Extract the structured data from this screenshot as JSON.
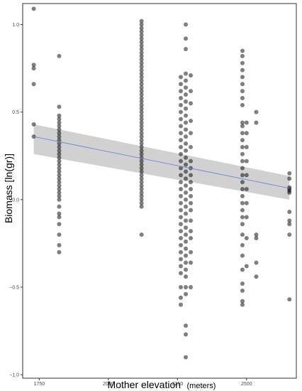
{
  "chart_data": {
    "type": "scatter",
    "title": "",
    "xlabel": "Mother elevation",
    "xlabel_unit": "(meters)",
    "ylabel": "Biomass [ln(gr)]",
    "xlim": [
      1690,
      2680
    ],
    "ylim": [
      -1.02,
      1.12
    ],
    "x_ticks": [
      1750,
      2000,
      2250,
      2500
    ],
    "x_tick_labels": [
      "1750",
      "2000",
      "2250",
      "2500"
    ],
    "y_ticks": [
      -1.0,
      -0.5,
      0.0,
      0.5,
      1.0
    ],
    "y_tick_labels": [
      "−1.0",
      "−0.5",
      "0.0",
      "0.5",
      "1.0"
    ],
    "grid": false,
    "legend": "none",
    "colors": {
      "points": "#000000",
      "point_opacity": 0.5,
      "fit_line": "#6b86d6",
      "confidence_band": "#b3b3b3",
      "panel_border": "#333333"
    },
    "trend_line": {
      "x": [
        1730,
        2655
      ],
      "y": [
        0.36,
        0.065
      ],
      "ci_lower": [
        0.26,
        0.0
      ],
      "ci_upper": [
        0.43,
        0.135
      ]
    },
    "points": [
      {
        "x": 1730,
        "y": 1.09
      },
      {
        "x": 1730,
        "y": 0.77
      },
      {
        "x": 1730,
        "y": 0.75
      },
      {
        "x": 1730,
        "y": 0.66
      },
      {
        "x": 1730,
        "y": 0.43
      },
      {
        "x": 1730,
        "y": 0.36
      },
      {
        "x": 1822,
        "y": 0.82
      },
      {
        "x": 1822,
        "y": 0.53
      },
      {
        "x": 1822,
        "y": 0.48
      },
      {
        "x": 1822,
        "y": 0.46
      },
      {
        "x": 1822,
        "y": 0.44
      },
      {
        "x": 1822,
        "y": 0.42
      },
      {
        "x": 1822,
        "y": 0.4
      },
      {
        "x": 1822,
        "y": 0.38
      },
      {
        "x": 1822,
        "y": 0.36
      },
      {
        "x": 1822,
        "y": 0.34
      },
      {
        "x": 1822,
        "y": 0.32
      },
      {
        "x": 1822,
        "y": 0.3
      },
      {
        "x": 1822,
        "y": 0.28
      },
      {
        "x": 1822,
        "y": 0.26
      },
      {
        "x": 1822,
        "y": 0.24
      },
      {
        "x": 1822,
        "y": 0.22
      },
      {
        "x": 1822,
        "y": 0.2
      },
      {
        "x": 1822,
        "y": 0.18
      },
      {
        "x": 1822,
        "y": 0.16
      },
      {
        "x": 1822,
        "y": 0.14
      },
      {
        "x": 1822,
        "y": 0.12
      },
      {
        "x": 1822,
        "y": 0.1
      },
      {
        "x": 1822,
        "y": 0.08
      },
      {
        "x": 1822,
        "y": 0.06
      },
      {
        "x": 1822,
        "y": 0.04
      },
      {
        "x": 1822,
        "y": 0.02
      },
      {
        "x": 1822,
        "y": 0.0
      },
      {
        "x": 1822,
        "y": -0.04
      },
      {
        "x": 1822,
        "y": -0.08
      },
      {
        "x": 1822,
        "y": -0.1
      },
      {
        "x": 1822,
        "y": -0.14
      },
      {
        "x": 1822,
        "y": -0.2
      },
      {
        "x": 1822,
        "y": -0.26
      },
      {
        "x": 1822,
        "y": -0.3
      },
      {
        "x": 2120,
        "y": 1.02
      },
      {
        "x": 2120,
        "y": 1.0
      },
      {
        "x": 2120,
        "y": 0.98
      },
      {
        "x": 2120,
        "y": 0.96
      },
      {
        "x": 2120,
        "y": 0.94
      },
      {
        "x": 2120,
        "y": 0.92
      },
      {
        "x": 2120,
        "y": 0.9
      },
      {
        "x": 2120,
        "y": 0.88
      },
      {
        "x": 2120,
        "y": 0.86
      },
      {
        "x": 2120,
        "y": 0.84
      },
      {
        "x": 2120,
        "y": 0.82
      },
      {
        "x": 2120,
        "y": 0.8
      },
      {
        "x": 2120,
        "y": 0.78
      },
      {
        "x": 2120,
        "y": 0.76
      },
      {
        "x": 2120,
        "y": 0.74
      },
      {
        "x": 2120,
        "y": 0.72
      },
      {
        "x": 2120,
        "y": 0.7
      },
      {
        "x": 2120,
        "y": 0.68
      },
      {
        "x": 2120,
        "y": 0.66
      },
      {
        "x": 2120,
        "y": 0.64
      },
      {
        "x": 2120,
        "y": 0.62
      },
      {
        "x": 2120,
        "y": 0.6
      },
      {
        "x": 2120,
        "y": 0.58
      },
      {
        "x": 2120,
        "y": 0.56
      },
      {
        "x": 2120,
        "y": 0.54
      },
      {
        "x": 2120,
        "y": 0.52
      },
      {
        "x": 2120,
        "y": 0.5
      },
      {
        "x": 2120,
        "y": 0.48
      },
      {
        "x": 2120,
        "y": 0.46
      },
      {
        "x": 2120,
        "y": 0.44
      },
      {
        "x": 2120,
        "y": 0.42
      },
      {
        "x": 2120,
        "y": 0.4
      },
      {
        "x": 2120,
        "y": 0.38
      },
      {
        "x": 2120,
        "y": 0.36
      },
      {
        "x": 2120,
        "y": 0.34
      },
      {
        "x": 2120,
        "y": 0.32
      },
      {
        "x": 2120,
        "y": 0.3
      },
      {
        "x": 2120,
        "y": 0.28
      },
      {
        "x": 2120,
        "y": 0.26
      },
      {
        "x": 2120,
        "y": 0.24
      },
      {
        "x": 2120,
        "y": 0.22
      },
      {
        "x": 2120,
        "y": 0.2
      },
      {
        "x": 2120,
        "y": 0.18
      },
      {
        "x": 2120,
        "y": 0.16
      },
      {
        "x": 2120,
        "y": 0.14
      },
      {
        "x": 2120,
        "y": 0.12
      },
      {
        "x": 2120,
        "y": 0.1
      },
      {
        "x": 2120,
        "y": 0.08
      },
      {
        "x": 2120,
        "y": 0.06
      },
      {
        "x": 2120,
        "y": 0.04
      },
      {
        "x": 2120,
        "y": 0.02
      },
      {
        "x": 2120,
        "y": 0.0
      },
      {
        "x": 2120,
        "y": -0.02
      },
      {
        "x": 2120,
        "y": -0.04
      },
      {
        "x": 2120,
        "y": -0.2
      },
      {
        "x": 2262,
        "y": 0.7
      },
      {
        "x": 2262,
        "y": 0.66
      },
      {
        "x": 2262,
        "y": 0.62
      },
      {
        "x": 2262,
        "y": 0.58
      },
      {
        "x": 2262,
        "y": 0.54
      },
      {
        "x": 2262,
        "y": 0.5
      },
      {
        "x": 2262,
        "y": 0.46
      },
      {
        "x": 2262,
        "y": 0.42
      },
      {
        "x": 2262,
        "y": 0.38
      },
      {
        "x": 2262,
        "y": 0.34
      },
      {
        "x": 2262,
        "y": 0.3
      },
      {
        "x": 2262,
        "y": 0.26
      },
      {
        "x": 2262,
        "y": 0.22
      },
      {
        "x": 2262,
        "y": 0.18
      },
      {
        "x": 2262,
        "y": 0.14
      },
      {
        "x": 2262,
        "y": 0.1
      },
      {
        "x": 2262,
        "y": 0.06
      },
      {
        "x": 2262,
        "y": 0.02
      },
      {
        "x": 2262,
        "y": -0.02
      },
      {
        "x": 2262,
        "y": -0.06
      },
      {
        "x": 2262,
        "y": -0.1
      },
      {
        "x": 2262,
        "y": -0.14
      },
      {
        "x": 2262,
        "y": -0.18
      },
      {
        "x": 2262,
        "y": -0.22
      },
      {
        "x": 2262,
        "y": -0.26
      },
      {
        "x": 2262,
        "y": -0.3
      },
      {
        "x": 2262,
        "y": -0.34
      },
      {
        "x": 2262,
        "y": -0.38
      },
      {
        "x": 2262,
        "y": -0.42
      },
      {
        "x": 2262,
        "y": -0.5
      },
      {
        "x": 2262,
        "y": -0.56
      },
      {
        "x": 2262,
        "y": -0.6
      },
      {
        "x": 2280,
        "y": 1.0
      },
      {
        "x": 2280,
        "y": 0.92
      },
      {
        "x": 2280,
        "y": 0.86
      },
      {
        "x": 2280,
        "y": 0.72
      },
      {
        "x": 2280,
        "y": 0.68
      },
      {
        "x": 2280,
        "y": 0.64
      },
      {
        "x": 2280,
        "y": 0.6
      },
      {
        "x": 2280,
        "y": 0.56
      },
      {
        "x": 2280,
        "y": 0.52
      },
      {
        "x": 2280,
        "y": 0.48
      },
      {
        "x": 2280,
        "y": 0.44
      },
      {
        "x": 2280,
        "y": 0.4
      },
      {
        "x": 2280,
        "y": 0.36
      },
      {
        "x": 2280,
        "y": 0.32
      },
      {
        "x": 2280,
        "y": 0.28
      },
      {
        "x": 2280,
        "y": 0.24
      },
      {
        "x": 2280,
        "y": 0.2
      },
      {
        "x": 2280,
        "y": 0.16
      },
      {
        "x": 2280,
        "y": 0.12
      },
      {
        "x": 2280,
        "y": 0.08
      },
      {
        "x": 2280,
        "y": 0.04
      },
      {
        "x": 2280,
        "y": 0.0
      },
      {
        "x": 2280,
        "y": -0.04
      },
      {
        "x": 2280,
        "y": -0.08
      },
      {
        "x": 2280,
        "y": -0.12
      },
      {
        "x": 2280,
        "y": -0.16
      },
      {
        "x": 2280,
        "y": -0.2
      },
      {
        "x": 2280,
        "y": -0.24
      },
      {
        "x": 2280,
        "y": -0.28
      },
      {
        "x": 2280,
        "y": -0.32
      },
      {
        "x": 2280,
        "y": -0.36
      },
      {
        "x": 2280,
        "y": -0.4
      },
      {
        "x": 2280,
        "y": -0.44
      },
      {
        "x": 2280,
        "y": -0.5
      },
      {
        "x": 2280,
        "y": -0.54
      },
      {
        "x": 2280,
        "y": -0.72
      },
      {
        "x": 2280,
        "y": -0.77
      },
      {
        "x": 2280,
        "y": -0.9
      },
      {
        "x": 2298,
        "y": 0.71
      },
      {
        "x": 2298,
        "y": 0.62
      },
      {
        "x": 2298,
        "y": 0.55
      },
      {
        "x": 2298,
        "y": 0.45
      },
      {
        "x": 2298,
        "y": 0.38
      },
      {
        "x": 2298,
        "y": 0.3
      },
      {
        "x": 2298,
        "y": 0.22
      },
      {
        "x": 2298,
        "y": 0.18
      },
      {
        "x": 2298,
        "y": 0.14
      },
      {
        "x": 2298,
        "y": 0.1
      },
      {
        "x": 2298,
        "y": 0.06
      },
      {
        "x": 2298,
        "y": 0.02
      },
      {
        "x": 2298,
        "y": -0.02
      },
      {
        "x": 2298,
        "y": -0.06
      },
      {
        "x": 2298,
        "y": -0.12
      },
      {
        "x": 2298,
        "y": -0.18
      },
      {
        "x": 2298,
        "y": -0.22
      },
      {
        "x": 2298,
        "y": -0.3
      },
      {
        "x": 2298,
        "y": -0.36
      },
      {
        "x": 2298,
        "y": -0.5
      },
      {
        "x": 2485,
        "y": 0.85
      },
      {
        "x": 2485,
        "y": 0.82
      },
      {
        "x": 2485,
        "y": 0.78
      },
      {
        "x": 2485,
        "y": 0.74
      },
      {
        "x": 2485,
        "y": 0.7
      },
      {
        "x": 2485,
        "y": 0.66
      },
      {
        "x": 2485,
        "y": 0.62
      },
      {
        "x": 2485,
        "y": 0.58
      },
      {
        "x": 2485,
        "y": 0.54
      },
      {
        "x": 2485,
        "y": 0.44
      },
      {
        "x": 2485,
        "y": 0.42
      },
      {
        "x": 2485,
        "y": 0.38
      },
      {
        "x": 2485,
        "y": 0.34
      },
      {
        "x": 2485,
        "y": 0.3
      },
      {
        "x": 2485,
        "y": 0.26
      },
      {
        "x": 2485,
        "y": 0.22
      },
      {
        "x": 2485,
        "y": 0.18
      },
      {
        "x": 2485,
        "y": 0.14
      },
      {
        "x": 2485,
        "y": 0.1
      },
      {
        "x": 2485,
        "y": 0.06
      },
      {
        "x": 2485,
        "y": 0.02
      },
      {
        "x": 2485,
        "y": -0.02
      },
      {
        "x": 2485,
        "y": -0.06
      },
      {
        "x": 2485,
        "y": -0.1
      },
      {
        "x": 2485,
        "y": -0.14
      },
      {
        "x": 2485,
        "y": -0.2
      },
      {
        "x": 2485,
        "y": -0.26
      },
      {
        "x": 2485,
        "y": -0.32
      },
      {
        "x": 2485,
        "y": -0.4
      },
      {
        "x": 2485,
        "y": -0.48
      },
      {
        "x": 2485,
        "y": -0.52
      },
      {
        "x": 2485,
        "y": -0.58
      },
      {
        "x": 2485,
        "y": -0.6
      },
      {
        "x": 2500,
        "y": 0.44
      },
      {
        "x": 2500,
        "y": 0.38
      },
      {
        "x": 2500,
        "y": 0.3
      },
      {
        "x": 2500,
        "y": 0.22
      },
      {
        "x": 2500,
        "y": 0.14
      },
      {
        "x": 2500,
        "y": 0.06
      },
      {
        "x": 2500,
        "y": -0.02
      },
      {
        "x": 2500,
        "y": -0.1
      },
      {
        "x": 2500,
        "y": -0.22
      },
      {
        "x": 2500,
        "y": -0.38
      },
      {
        "x": 2535,
        "y": 0.5
      },
      {
        "x": 2535,
        "y": 0.44
      },
      {
        "x": 2535,
        "y": -0.2
      },
      {
        "x": 2535,
        "y": -0.22
      },
      {
        "x": 2535,
        "y": -0.36
      },
      {
        "x": 2535,
        "y": -0.44
      },
      {
        "x": 2655,
        "y": 0.15
      },
      {
        "x": 2655,
        "y": 0.12
      },
      {
        "x": 2655,
        "y": 0.07
      },
      {
        "x": 2655,
        "y": 0.06
      },
      {
        "x": 2655,
        "y": 0.05
      },
      {
        "x": 2655,
        "y": 0.04
      },
      {
        "x": 2655,
        "y": -0.07
      },
      {
        "x": 2655,
        "y": -0.12
      },
      {
        "x": 2655,
        "y": -0.14
      },
      {
        "x": 2655,
        "y": -0.2
      },
      {
        "x": 2655,
        "y": -0.57
      }
    ]
  }
}
